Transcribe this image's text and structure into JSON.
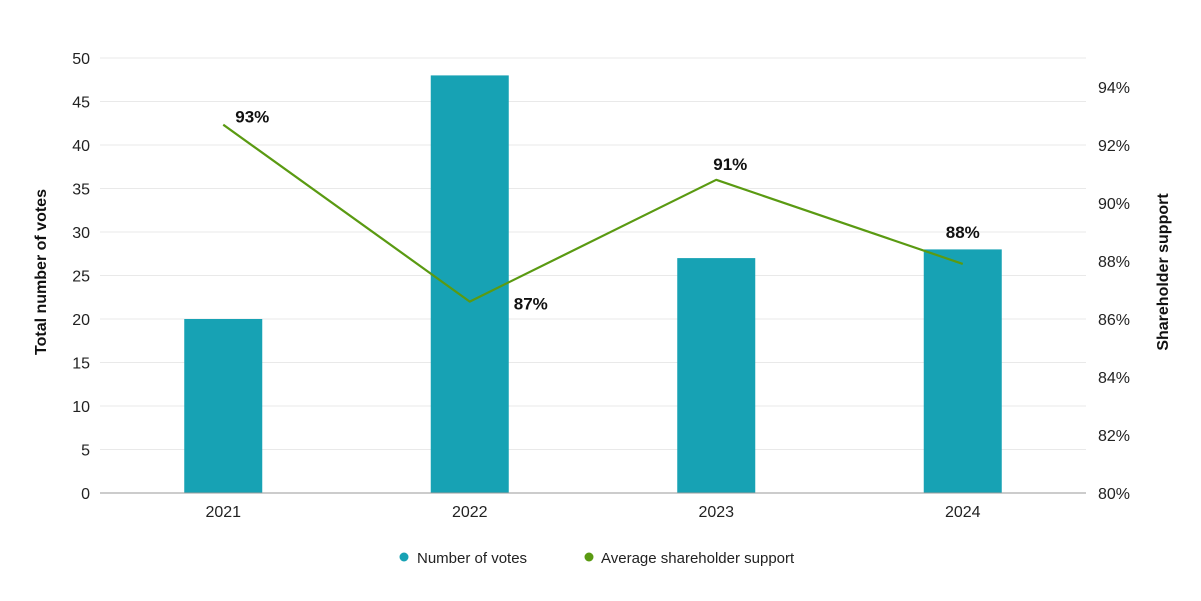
{
  "chart_data": {
    "type": "bar",
    "categories": [
      "2021",
      "2022",
      "2023",
      "2024"
    ],
    "series": [
      {
        "name": "Number of votes",
        "type": "bar",
        "axis": "left",
        "values": [
          20,
          48,
          27,
          28
        ],
        "color": "#17a2b4"
      },
      {
        "name": "Average shareholder support",
        "type": "line",
        "axis": "right",
        "values": [
          92.7,
          86.6,
          90.8,
          87.9
        ],
        "labels": [
          "93%",
          "87%",
          "91%",
          "88%"
        ],
        "color": "#5a9a12"
      }
    ],
    "y_left": {
      "label": "Total number of votes",
      "ylim": [
        0,
        50
      ],
      "ticks": [
        0,
        5,
        10,
        15,
        20,
        25,
        30,
        35,
        40,
        45,
        50
      ],
      "tick_labels": [
        "0",
        "5",
        "10",
        "15",
        "20",
        "25",
        "30",
        "35",
        "40",
        "45",
        "50"
      ]
    },
    "y_right": {
      "label": "Shareholder support",
      "ylim": [
        80,
        95
      ],
      "ticks": [
        80,
        82,
        84,
        86,
        88,
        90,
        92,
        94
      ],
      "tick_labels": [
        "80%",
        "82%",
        "84%",
        "86%",
        "88%",
        "90%",
        "92%",
        "94%"
      ]
    },
    "grid": true,
    "legend": {
      "position": "bottom",
      "entries": [
        "Number of votes",
        "Average shareholder support"
      ]
    }
  }
}
